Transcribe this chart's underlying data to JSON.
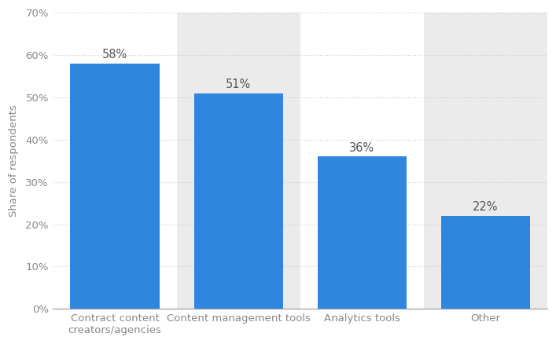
{
  "categories": [
    "Contract content\ncreators/agencies",
    "Content management tools",
    "Analytics tools",
    "Other"
  ],
  "values": [
    58,
    51,
    36,
    22
  ],
  "bar_color": "#2e86de",
  "bar_labels": [
    "58%",
    "51%",
    "36%",
    "22%"
  ],
  "ylabel": "Share of respondents",
  "ylim": [
    0,
    70
  ],
  "yticks": [
    0,
    10,
    20,
    30,
    40,
    50,
    60,
    70
  ],
  "ytick_labels": [
    "0%",
    "10%",
    "20%",
    "30%",
    "40%",
    "50%",
    "60%",
    "70%"
  ],
  "background_color": "#ffffff",
  "plot_bg_color": "#ebebeb",
  "grid_color": "#cccccc",
  "bar_label_color": "#555555",
  "bar_label_fontsize": 10.5,
  "ylabel_fontsize": 9.5,
  "tick_fontsize": 9.5,
  "bar_width": 0.72,
  "col_colors": [
    "#ffffff",
    "#ebebeb",
    "#ffffff",
    "#ebebeb"
  ]
}
